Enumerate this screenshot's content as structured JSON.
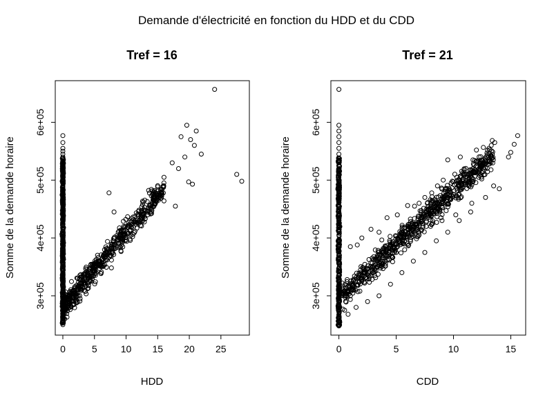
{
  "figure": {
    "suptitle": "Demande d'électricité en fonction du HDD et du CDD"
  },
  "chart_data": [
    {
      "type": "scatter",
      "title": "Tref = 16",
      "xlabel": "HDD",
      "ylabel": "Somme de la demande horaire",
      "xlim": [
        -1.2,
        29.5
      ],
      "ylim": [
        232000,
        672000
      ],
      "xticks": [
        0,
        5,
        10,
        15,
        20,
        25
      ],
      "xtick_labels": [
        "0",
        "5",
        "10",
        "15",
        "20",
        "25"
      ],
      "yticks": [
        300000,
        400000,
        500000,
        600000
      ],
      "ytick_labels": [
        "3e+05",
        "4e+05",
        "5e+05",
        "6e+05"
      ],
      "grid": false,
      "legend": "none",
      "marker": "open-circle",
      "points": [
        [
          24.0,
          657000
        ],
        [
          28.3,
          498000
        ],
        [
          27.5,
          510000
        ],
        [
          21.1,
          585000
        ],
        [
          19.6,
          595000
        ],
        [
          18.7,
          575000
        ],
        [
          20.2,
          570000
        ],
        [
          21.9,
          545000
        ],
        [
          20.8,
          560000
        ],
        [
          19.3,
          540000
        ],
        [
          17.3,
          530000
        ],
        [
          18.3,
          520000
        ],
        [
          19.9,
          497000
        ],
        [
          20.5,
          493000
        ],
        [
          16.0,
          505000
        ],
        [
          17.8,
          455000
        ],
        [
          14.6,
          478000
        ],
        [
          7.3,
          478000
        ],
        [
          8.1,
          445000
        ],
        [
          0.0,
          577000
        ],
        [
          0.0,
          565000
        ],
        [
          0.0,
          555000
        ],
        [
          0.0,
          550000
        ],
        [
          0.0,
          545000
        ],
        [
          0.0,
          540000
        ],
        [
          0.0,
          535000
        ],
        [
          0.0,
          530000
        ],
        [
          0.0,
          520000
        ],
        [
          0.0,
          510000
        ],
        [
          0.0,
          500000
        ],
        [
          0.0,
          490000
        ],
        [
          0.0,
          480000
        ],
        [
          0.0,
          470000
        ],
        [
          0.0,
          460000
        ],
        [
          0.0,
          450000
        ],
        [
          0.0,
          440000
        ],
        [
          0.0,
          430000
        ],
        [
          0.0,
          420000
        ],
        [
          0.0,
          410000
        ],
        [
          0.0,
          400000
        ],
        [
          0.0,
          390000
        ],
        [
          0.0,
          380000
        ],
        [
          0.0,
          370000
        ],
        [
          0.0,
          360000
        ],
        [
          0.0,
          350000
        ],
        [
          0.0,
          340000
        ],
        [
          0.0,
          330000
        ],
        [
          0.0,
          320000
        ],
        [
          0.0,
          310000
        ],
        [
          0.0,
          300000
        ],
        [
          0.0,
          290000
        ],
        [
          0.0,
          280000
        ],
        [
          0.0,
          270000
        ],
        [
          0.0,
          260000
        ],
        [
          0.0,
          250000
        ]
      ]
    },
    {
      "type": "scatter",
      "title": "Tref = 21",
      "xlabel": "CDD",
      "ylabel": "Somme de la demande horaire",
      "xlim": [
        -0.7,
        16.3
      ],
      "ylim": [
        232000,
        672000
      ],
      "xticks": [
        0,
        5,
        10,
        15
      ],
      "xtick_labels": [
        "0",
        "5",
        "10",
        "15"
      ],
      "yticks": [
        300000,
        400000,
        500000,
        600000
      ],
      "ytick_labels": [
        "3e+05",
        "4e+05",
        "5e+05",
        "6e+05"
      ],
      "grid": false,
      "legend": "none",
      "marker": "open-circle",
      "points": [
        [
          0.0,
          657000
        ],
        [
          0.0,
          595000
        ],
        [
          0.0,
          585000
        ],
        [
          0.0,
          575000
        ],
        [
          0.0,
          565000
        ],
        [
          0.0,
          555000
        ],
        [
          0.0,
          545000
        ],
        [
          0.0,
          535000
        ],
        [
          0.0,
          525000
        ],
        [
          0.0,
          515000
        ],
        [
          0.0,
          505000
        ],
        [
          0.0,
          495000
        ],
        [
          0.0,
          485000
        ],
        [
          0.0,
          475000
        ],
        [
          0.0,
          465000
        ],
        [
          0.0,
          455000
        ],
        [
          0.0,
          445000
        ],
        [
          0.0,
          435000
        ],
        [
          0.0,
          425000
        ],
        [
          0.0,
          415000
        ],
        [
          0.0,
          405000
        ],
        [
          0.0,
          395000
        ],
        [
          0.0,
          385000
        ],
        [
          0.0,
          375000
        ],
        [
          0.0,
          365000
        ],
        [
          0.0,
          355000
        ],
        [
          0.0,
          345000
        ],
        [
          0.0,
          335000
        ],
        [
          0.0,
          325000
        ],
        [
          0.0,
          315000
        ],
        [
          0.0,
          305000
        ],
        [
          0.0,
          295000
        ],
        [
          0.0,
          285000
        ],
        [
          0.0,
          275000
        ],
        [
          0.0,
          265000
        ],
        [
          0.0,
          255000
        ],
        [
          0.0,
          248000
        ],
        [
          15.6,
          577000
        ],
        [
          15.3,
          562000
        ],
        [
          15.0,
          548000
        ],
        [
          14.8,
          540000
        ],
        [
          13.6,
          565000
        ],
        [
          13.3,
          560000
        ],
        [
          13.1,
          555000
        ],
        [
          12.0,
          552000
        ],
        [
          11.7,
          535000
        ],
        [
          10.6,
          540000
        ],
        [
          9.5,
          535000
        ],
        [
          1.0,
          385000
        ],
        [
          1.6,
          388000
        ],
        [
          2.0,
          400000
        ],
        [
          2.8,
          415000
        ],
        [
          3.5,
          410000
        ],
        [
          4.2,
          435000
        ],
        [
          5.1,
          440000
        ],
        [
          6.0,
          456000
        ],
        [
          6.6,
          455000
        ],
        [
          7.0,
          460000
        ],
        [
          7.5,
          470000
        ],
        [
          8.1,
          478000
        ],
        [
          8.6,
          490000
        ],
        [
          9.1,
          500000
        ],
        [
          9.8,
          495000
        ],
        [
          10.3,
          505000
        ],
        [
          11.0,
          510000
        ],
        [
          12.2,
          505000
        ],
        [
          13.5,
          490000
        ],
        [
          14.0,
          485000
        ],
        [
          12.8,
          470000
        ],
        [
          11.6,
          460000
        ],
        [
          10.2,
          440000
        ],
        [
          9.0,
          430000
        ],
        [
          8.0,
          420000
        ],
        [
          7.0,
          405000
        ],
        [
          6.0,
          390000
        ],
        [
          5.0,
          375000
        ],
        [
          4.0,
          360000
        ],
        [
          3.0,
          340000
        ],
        [
          2.0,
          325000
        ],
        [
          1.0,
          300000
        ],
        [
          0.5,
          275000
        ],
        [
          0.8,
          268000
        ],
        [
          1.5,
          280000
        ],
        [
          2.5,
          290000
        ],
        [
          3.5,
          300000
        ],
        [
          4.5,
          320000
        ],
        [
          5.5,
          340000
        ],
        [
          6.5,
          360000
        ],
        [
          7.5,
          375000
        ],
        [
          8.5,
          395000
        ],
        [
          9.5,
          410000
        ],
        [
          10.5,
          430000
        ],
        [
          11.5,
          445000
        ]
      ]
    }
  ]
}
